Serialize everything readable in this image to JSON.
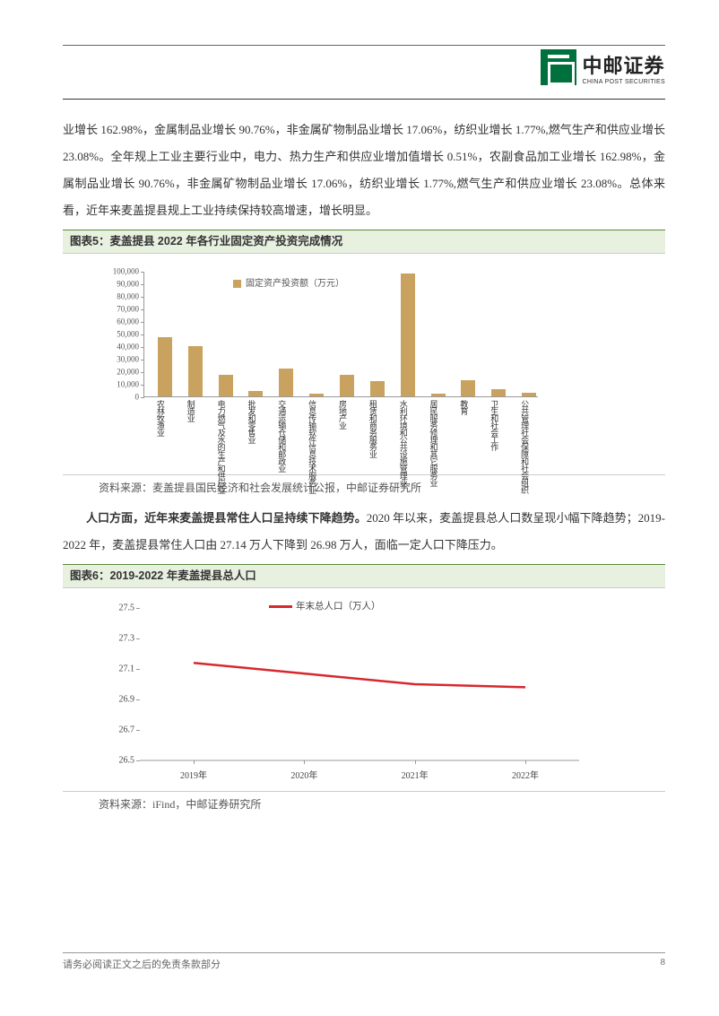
{
  "header": {
    "logo_cn": "中邮证券",
    "logo_en": "CHINA POST SECURITIES"
  },
  "text": {
    "para1": "业增长 162.98%，金属制品业增长 90.76%，非金属矿物制品业增长 17.06%，纺织业增长 1.77%,燃气生产和供应业增长 23.08%。全年规上工业主要行业中，电力、热力生产和供应业增加值增长 0.51%，农副食品加工业增长 162.98%，金属制品业增长 90.76%，非金属矿物制品业增长 17.06%，纺织业增长 1.77%,燃气生产和供应业增长 23.08%。总体来看，近年来麦盖提县规上工业持续保持较高增速，增长明显。",
    "para2_bold": "人口方面，近年来麦盖提县常住人口呈持续下降趋势。",
    "para2_rest": "2020 年以来，麦盖提县总人口数呈现小幅下降趋势；2019-2022 年，麦盖提县常住人口由 27.14 万人下降到 26.98 万人，面临一定人口下降压力。"
  },
  "chart5": {
    "title": "图表5：麦盖提县 2022 年各行业固定资产投资完成情况",
    "source": "资料来源：麦盖提县国民经济和社会发展统计公报，中邮证券研究所",
    "type": "bar",
    "legend": "固定资产投资额（万元）",
    "bar_color": "#c9a25f",
    "ymax": 100000,
    "ytick_step": 10000,
    "yticks": [
      0,
      10000,
      20000,
      30000,
      40000,
      50000,
      60000,
      70000,
      80000,
      90000,
      100000
    ],
    "categories": [
      "农林牧渔业",
      "制造业",
      "电力燃气及水的生产和供应业",
      "批发和零售业",
      "交通运输仓储和邮政业",
      "信息传输软件信息技术服务业",
      "房地产业",
      "租赁和商务服务业",
      "水利环境和公共设施管理业",
      "居民服务修理和其它服务业",
      "教育",
      "卫生和社会工作",
      "公共管理社会保障和社会组织"
    ],
    "values": [
      47000,
      40000,
      17000,
      4000,
      22000,
      2000,
      17000,
      12000,
      98000,
      2000,
      13000,
      6000,
      3000
    ]
  },
  "chart6": {
    "title": "图表6：2019-2022 年麦盖提县总人口",
    "source": "资料来源：iFind，中邮证券研究所",
    "type": "line",
    "legend": "年末总人口（万人）",
    "line_color": "#d6292e",
    "line_width": 2.5,
    "ylim": [
      26.5,
      27.5
    ],
    "yticks": [
      26.5,
      26.7,
      26.9,
      27.1,
      27.3,
      27.5
    ],
    "categories": [
      "2019年",
      "2020年",
      "2021年",
      "2022年"
    ],
    "values": [
      27.14,
      27.07,
      27.0,
      26.98
    ]
  },
  "footer": {
    "disclaimer": "请务必阅读正文之后的免责条款部分",
    "page": "8"
  }
}
